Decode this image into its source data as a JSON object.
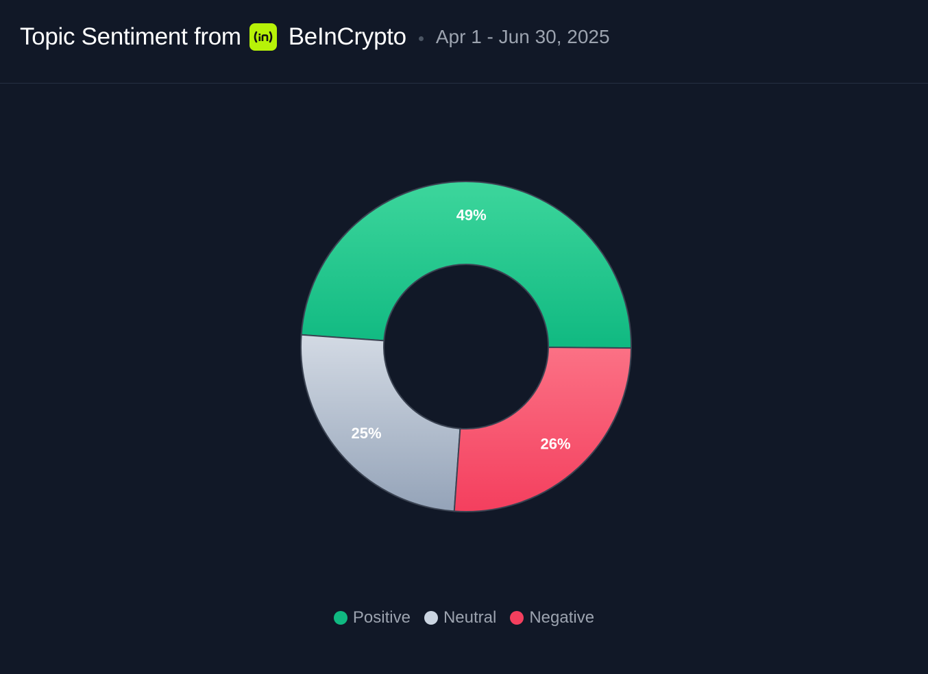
{
  "header": {
    "title_prefix": "Topic Sentiment from",
    "brand": "BeInCrypto",
    "logo_icon": "beincrypto-logo-icon",
    "date_range": "Apr 1 - Jun 30, 2025"
  },
  "colors": {
    "background": "#111827",
    "positive": "#10b981",
    "neutral": "#cbd5e1",
    "negative": "#f43f5e",
    "logo": "#b7f208"
  },
  "chart_data": {
    "type": "pie",
    "variant": "donut",
    "title": "",
    "categories": [
      "Positive",
      "Neutral",
      "Negative"
    ],
    "values": [
      49,
      25,
      26
    ],
    "labels": [
      "49%",
      "25%",
      "26%"
    ],
    "legend_position": "bottom-center",
    "legend": [
      "Positive",
      "Neutral",
      "Negative"
    ]
  }
}
